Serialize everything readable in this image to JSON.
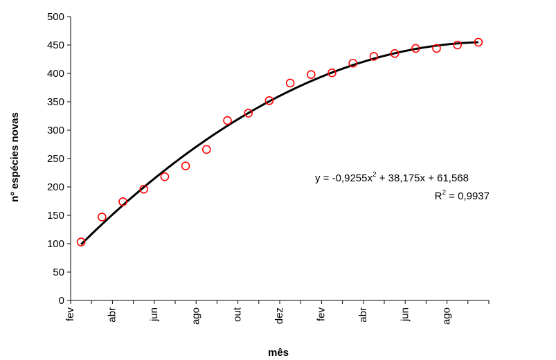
{
  "chart_data": {
    "type": "scatter",
    "xlabel": "mês",
    "ylabel": "nº espécies novas",
    "ylim": [
      0,
      500
    ],
    "yticks": [
      0,
      50,
      100,
      150,
      200,
      250,
      300,
      350,
      400,
      450,
      500
    ],
    "x_tick_labels": [
      "fev",
      "abr",
      "jun",
      "ago",
      "out",
      "dez",
      "fev",
      "abr",
      "jun",
      "ago"
    ],
    "x_tick_label_positions": [
      1,
      3,
      5,
      7,
      9,
      11,
      13,
      15,
      17,
      19
    ],
    "grid": false,
    "legend": "none",
    "series": [
      {
        "marker": "open-circle",
        "color": "#ff0000",
        "x": [
          1,
          2,
          3,
          4,
          5,
          6,
          7,
          8,
          9,
          10,
          11,
          12,
          13,
          14,
          15,
          16,
          17,
          18,
          19,
          20
        ],
        "y": [
          103,
          147,
          174,
          196,
          218,
          237,
          266,
          317,
          330,
          352,
          383,
          398,
          401,
          418,
          430,
          435,
          444,
          444,
          450,
          455
        ]
      }
    ],
    "trendline": {
      "type": "polynomial-2",
      "color": "#000000",
      "coefficients": {
        "a": -0.9255,
        "b": 38.175,
        "c": 61.568
      },
      "r2": 0.9937
    },
    "annotations": {
      "eq_main": "y = -0,9255x",
      "eq_sup": "2",
      "eq_rest": " + 38,175x + 61,568",
      "r2_main": "R",
      "r2_sup": "2",
      "r2_rest": " = 0,9937"
    }
  }
}
